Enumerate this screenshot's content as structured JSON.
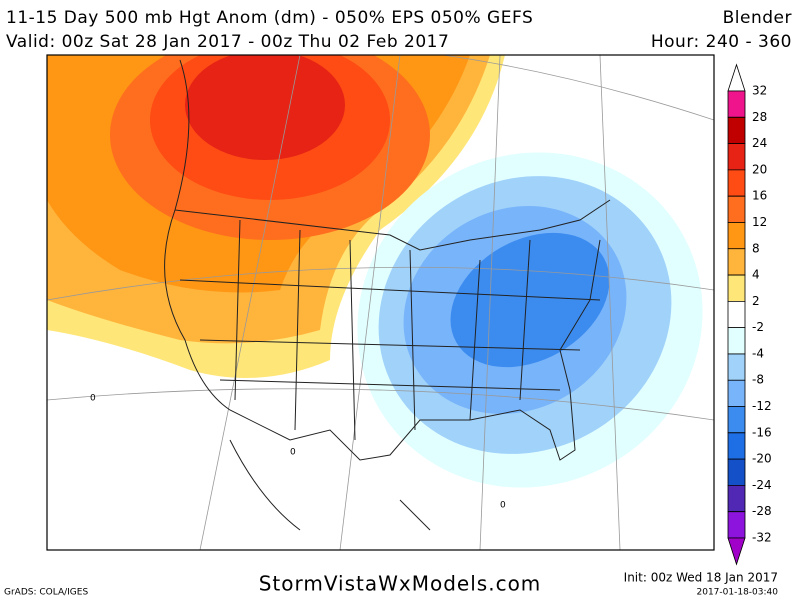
{
  "header": {
    "title": "11-15 Day 500 mb Hgt Anom (dm) - 050% EPS 050% GEFS",
    "source": "Blender",
    "valid": "Valid: 00z Sat 28 Jan 2017 - 00z Thu 02 Feb 2017",
    "hour": "Hour: 240 - 360"
  },
  "map": {
    "contour_labels": [
      "0",
      "0",
      "0"
    ]
  },
  "legend": {
    "labels": [
      "32",
      "28",
      "24",
      "20",
      "16",
      "12",
      "8",
      "4",
      "2",
      "-2",
      "-4",
      "-8",
      "-12",
      "-16",
      "-20",
      "-24",
      "-28",
      "-32"
    ],
    "colors": [
      "#ffffff",
      "#f0148c",
      "#c00000",
      "#e62314",
      "#ff4b14",
      "#ff6e1e",
      "#ff9614",
      "#ffb43c",
      "#ffe678",
      "#ffffff",
      "#e1ffff",
      "#a0d2fa",
      "#78b4fa",
      "#3c8cf0",
      "#1e6ee6",
      "#1450c8",
      "#5028b4",
      "#8c14dc",
      "#a000c8"
    ]
  },
  "footer": {
    "credit": "GrADS: COLA/IGES",
    "site": "StormVistaWxModels.com",
    "init": "Init: 00z Wed 18 Jan 2017",
    "stamp": "2017-01-18-03:40"
  }
}
